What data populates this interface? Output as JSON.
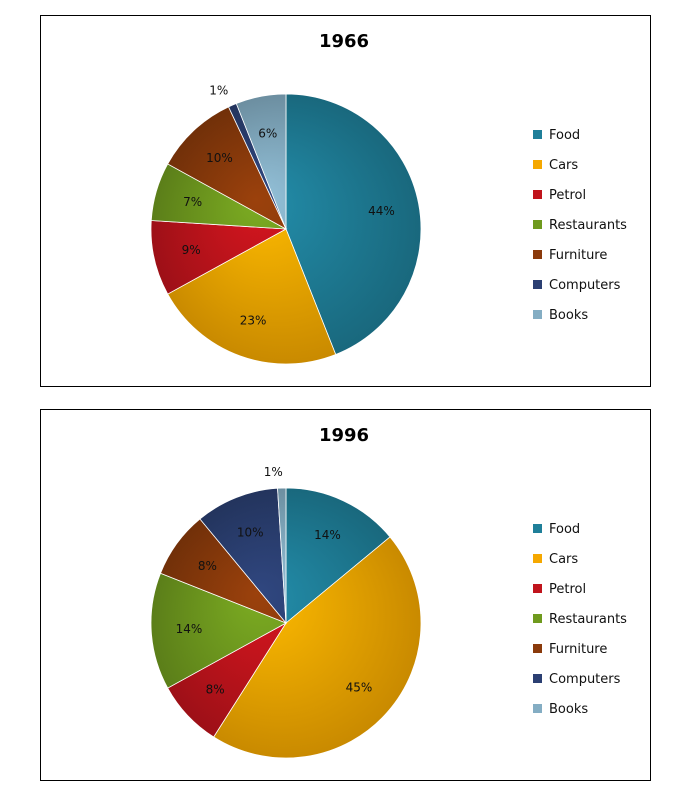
{
  "chart_data": [
    {
      "type": "pie",
      "title": "1966",
      "categories": [
        "Food",
        "Cars",
        "Petrol",
        "Restaurants",
        "Furniture",
        "Computers",
        "Books"
      ],
      "values": [
        44,
        23,
        9,
        7,
        10,
        1,
        6
      ],
      "labels": [
        "44%",
        "23%",
        "9%",
        "7%",
        "10%",
        "1%",
        "6%"
      ],
      "legend_position": "right",
      "start_angle": "top, clockwise"
    },
    {
      "type": "pie",
      "title": "1996",
      "categories": [
        "Food",
        "Cars",
        "Petrol",
        "Restaurants",
        "Furniture",
        "Computers",
        "Books"
      ],
      "values": [
        14,
        45,
        8,
        14,
        8,
        10,
        1
      ],
      "labels": [
        "14%",
        "45%",
        "8%",
        "14%",
        "8%",
        "10%",
        "1%"
      ],
      "legend_position": "right",
      "start_angle": "top, clockwise"
    }
  ],
  "colors": {
    "Food": "#1F7F99",
    "Cars": "#F5A800",
    "Petrol": "#C0141C",
    "Restaurants": "#6F9A1E",
    "Furniture": "#8A3A0B",
    "Computers": "#2B3F72",
    "Books": "#84ADC3"
  }
}
